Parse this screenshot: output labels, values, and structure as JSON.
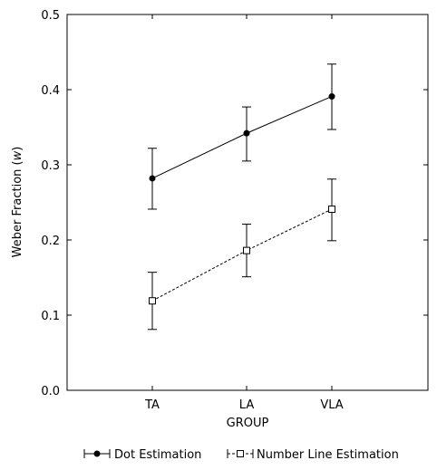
{
  "chart_data": {
    "type": "line",
    "title": "",
    "xlabel": "GROUP",
    "ylabel": "Weber Fraction (w)",
    "ylabel_parts": [
      "Weber Fraction (",
      "w",
      ")"
    ],
    "categories": [
      "TA",
      "LA",
      "VLA"
    ],
    "ylim": [
      0.0,
      0.5
    ],
    "yticks": [
      0.0,
      0.1,
      0.2,
      0.3,
      0.4,
      0.5
    ],
    "ytick_labels": [
      "0.0",
      "0.1",
      "0.2",
      "0.3",
      "0.4",
      "0.5"
    ],
    "grid": false,
    "legend_position": "bottom",
    "series": [
      {
        "name": "Dot Estimation",
        "marker": "filled-circle",
        "line_style": "solid",
        "color": "#000000",
        "values": [
          0.282,
          0.342,
          0.391
        ],
        "error_low": [
          0.241,
          0.305,
          0.347
        ],
        "error_high": [
          0.322,
          0.377,
          0.434
        ]
      },
      {
        "name": "Number Line Estimation",
        "marker": "open-square",
        "line_style": "dashed",
        "color": "#000000",
        "values": [
          0.119,
          0.186,
          0.241
        ],
        "error_low": [
          0.081,
          0.151,
          0.199
        ],
        "error_high": [
          0.157,
          0.221,
          0.281
        ]
      }
    ]
  }
}
